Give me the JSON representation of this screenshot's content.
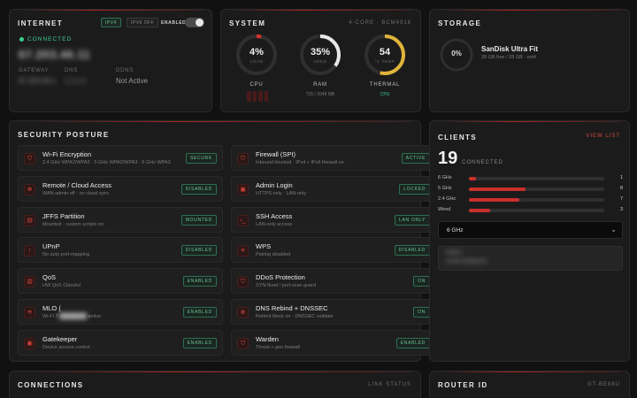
{
  "internet": {
    "title": "INTERNET",
    "pill_ipv4": "IPV4",
    "pill_ipv6": "IPV6 OFF",
    "toggle_label": "ENABLED",
    "status": "CONNECTED",
    "ip": "67.203.46.11",
    "gateway_label": "GATEWAY",
    "gateway_value": "67.203.46.1",
    "dns_label": "DNS",
    "dns_value": "1.1.1.1",
    "ddns_label": "DDNS",
    "ddns_value": "Not Active"
  },
  "system": {
    "title": "SYSTEM",
    "subtitle": "4-CORE · BCM4916",
    "cpu": {
      "value": "4%",
      "unit": "LOAD",
      "label": "CPU",
      "fraction": 0.04
    },
    "ram": {
      "value": "35%",
      "unit": "USED",
      "label": "RAM",
      "sub": "715 / 2048 MB",
      "fraction": 0.35
    },
    "thermal": {
      "value": "54",
      "unit": "°C TEMP",
      "label": "THERMAL",
      "sub": "CPU",
      "fraction": 0.54
    }
  },
  "storage": {
    "title": "STORAGE",
    "percent": "0%",
    "name": "SanDisk Ultra Fit",
    "info": "28 GB free / 28 GB · ext4"
  },
  "security": {
    "title": "SECURITY POSTURE",
    "items": [
      {
        "name": "Wi-Fi Encryption",
        "desc": "2.4 GHz WPA2/WPA3 · 5 GHz WPA2/WPA3 · 6 GHz WPA3",
        "badge": "SECURE",
        "icon": "shield-icon",
        "glyph": "⛉"
      },
      {
        "name": "Firewall (SPI)",
        "desc": "Inbound blocked · IPv4 + IPv6 firewall on",
        "badge": "ACTIVE",
        "icon": "shield-icon",
        "glyph": "⛉"
      },
      {
        "name": "Remote / Cloud Access",
        "desc": "WAN admin off · no cloud sync",
        "badge": "DISABLED",
        "icon": "globe-icon",
        "glyph": "⊕"
      },
      {
        "name": "Admin Login",
        "desc": "HTTPS only · LAN-only",
        "badge": "LOCKED",
        "icon": "lock-icon",
        "glyph": "▣"
      },
      {
        "name": "JFFS Partition",
        "desc": "Mounted · custom scripts on",
        "badge": "MOUNTED",
        "icon": "folder-icon",
        "glyph": "▤"
      },
      {
        "name": "SSH Access",
        "desc": "LAN-only access",
        "badge": "LAN ONLY",
        "icon": "terminal-icon",
        "glyph": "›_"
      },
      {
        "name": "UPnP",
        "desc": "No auto port-mapping",
        "badge": "DISABLED",
        "icon": "arrow-up-icon",
        "glyph": "↑"
      },
      {
        "name": "WPS",
        "desc": "Pairing disabled",
        "badge": "DISABLED",
        "icon": "wps-icon",
        "glyph": "✳"
      },
      {
        "name": "QoS",
        "desc": "HW QoS Classful",
        "badge": "ENABLED",
        "icon": "chart-icon",
        "glyph": "▥"
      },
      {
        "name": "DDoS Protection",
        "desc": "SYN-flood / port-scan guard",
        "badge": "ON",
        "icon": "shield-icon",
        "glyph": "⛉"
      },
      {
        "name": "MLO (",
        "desc": "Wi-Fi 7",
        "desc_tail": "active",
        "badge": "ENABLED",
        "icon": "wifi-icon",
        "glyph": "≋"
      },
      {
        "name": "DNS Rebind + DNSSEC",
        "desc": "Rebind block on · DNSSEC validate",
        "badge": "ON",
        "icon": "globe-icon",
        "glyph": "⊕"
      },
      {
        "name": "Gatekeeper",
        "desc": "Device access control",
        "badge": "ENABLED",
        "icon": "lock-icon",
        "glyph": "▣"
      },
      {
        "name": "Warden",
        "desc": "Threat + geo firewall",
        "badge": "ENABLED",
        "icon": "shield-icon",
        "glyph": "⛉"
      }
    ]
  },
  "clients": {
    "title": "CLIENTS",
    "view_list": "VIEW LIST",
    "count": "19",
    "count_label": "CONNECTED",
    "rows": [
      {
        "label": "6 GHz",
        "value": 1,
        "fraction": 0.05
      },
      {
        "label": "5 GHz",
        "value": 8,
        "fraction": 0.42
      },
      {
        "label": "2.4 GHz",
        "value": 7,
        "fraction": 0.37
      },
      {
        "label": "Wired",
        "value": 3,
        "fraction": 0.16
      }
    ],
    "select_value": "6 GHz",
    "entry_name": "Pixel 9",
    "entry_mac": "C4:3E:10:98:A2:01"
  },
  "connections": {
    "title": "CONNECTIONS",
    "subtitle": "LINK STATUS"
  },
  "router_id": {
    "title": "ROUTER ID",
    "subtitle": "GT-BE98U"
  },
  "colors": {
    "accent": "#c9302c",
    "ok": "#3ecf8e",
    "thermal": "#e0b43a",
    "ram": "#e8e8e8",
    "cpu": "#d9322c"
  }
}
